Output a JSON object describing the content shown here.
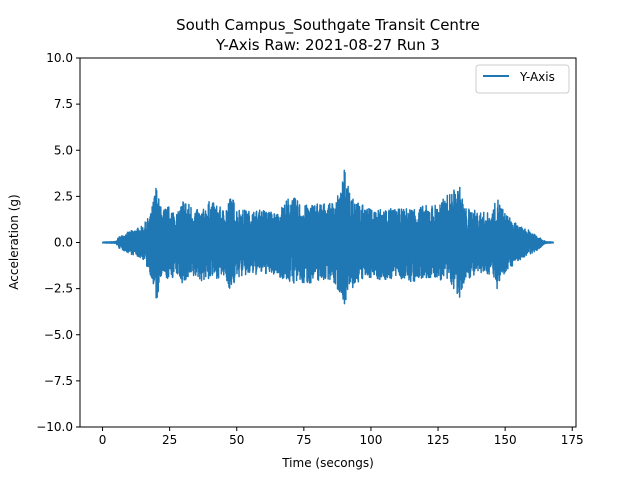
{
  "chart_data": {
    "type": "line",
    "title": "South Campus_Southgate Transit Centre",
    "subtitle": "Y-Axis Raw: 2021-08-27 Run 3",
    "xlabel": "Time (secongs)",
    "ylabel": "Acceleration (g)",
    "xlim": [
      -8.4,
      176.4
    ],
    "ylim": [
      -10,
      10
    ],
    "x_ticks": [
      0,
      25,
      50,
      75,
      100,
      125,
      150,
      175
    ],
    "x_tick_labels": [
      "0",
      "25",
      "50",
      "75",
      "100",
      "125",
      "150",
      "175"
    ],
    "y_ticks": [
      -10,
      -7.5,
      -5,
      -2.5,
      0,
      2.5,
      5,
      7.5,
      10
    ],
    "y_tick_labels": [
      "−10.0",
      "−7.5",
      "−5.0",
      "−2.5",
      "0.0",
      "2.5",
      "5.0",
      "7.5",
      "10.0"
    ],
    "grid": false,
    "legend_position": "top-right",
    "series": [
      {
        "name": "Y-Axis",
        "color": "#1f77b4",
        "x": [
          0,
          5,
          6,
          10,
          15,
          18,
          20,
          20.5,
          22,
          25,
          28,
          30,
          35,
          37,
          40,
          45,
          48,
          50,
          55,
          60,
          65,
          70,
          75,
          80,
          85,
          89,
          90,
          91,
          95,
          100,
          105,
          110,
          115,
          120,
          125,
          130,
          133,
          135,
          140,
          145,
          147,
          150,
          155,
          160,
          163,
          165,
          168
        ],
        "upper": [
          0.02,
          0.05,
          0.3,
          0.6,
          0.9,
          1.6,
          3.2,
          2.7,
          1.8,
          2.0,
          1.6,
          2.4,
          1.8,
          1.7,
          2.3,
          1.8,
          2.6,
          1.9,
          1.7,
          1.8,
          1.6,
          2.6,
          2.0,
          2.2,
          2.1,
          2.8,
          4.0,
          3.6,
          2.2,
          1.8,
          1.9,
          1.8,
          1.9,
          2.0,
          2.1,
          2.8,
          3.1,
          1.9,
          1.7,
          1.6,
          2.5,
          1.6,
          0.9,
          0.6,
          0.3,
          0.05,
          0.02
        ],
        "lower": [
          -0.02,
          -0.05,
          -0.3,
          -0.6,
          -0.9,
          -1.8,
          -3.4,
          -3.0,
          -2.0,
          -2.0,
          -1.8,
          -2.3,
          -1.9,
          -2.1,
          -2.0,
          -1.9,
          -2.7,
          -1.9,
          -1.8,
          -1.7,
          -1.8,
          -2.2,
          -2.3,
          -2.1,
          -2.0,
          -2.9,
          -3.4,
          -3.0,
          -2.2,
          -1.9,
          -2.1,
          -1.9,
          -2.2,
          -2.0,
          -2.0,
          -2.3,
          -3.3,
          -2.0,
          -1.8,
          -1.7,
          -2.5,
          -1.6,
          -1.0,
          -0.6,
          -0.3,
          -0.05,
          -0.02
        ]
      }
    ]
  }
}
